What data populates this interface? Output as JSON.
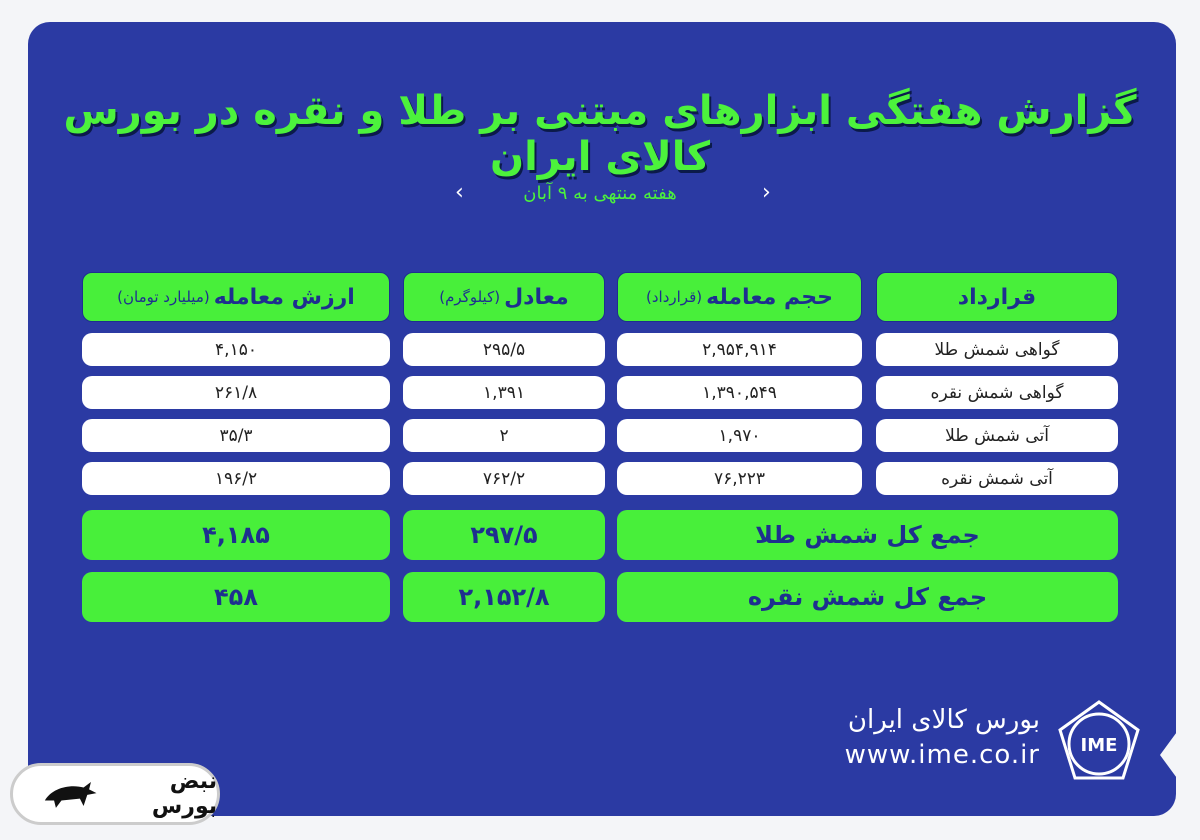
{
  "title": "گزارش هفتگی ابزارهای مبتنی بر طلا و نقره در بورس کالای ایران",
  "subtitle": "هفته منتهی به ۹ آبان",
  "table": {
    "headers": [
      {
        "main": "قرارداد",
        "unit": ""
      },
      {
        "main": "حجم معامله",
        "unit": "(قرارداد)"
      },
      {
        "main": "معادل",
        "unit": "(کیلوگرم)"
      },
      {
        "main": "ارزش معامله",
        "unit": "(میلیارد تومان)"
      }
    ],
    "rows": [
      {
        "contract": "گواهی شمش طلا",
        "volume": "۲,۹۵۴,۹۱۴",
        "equivalent": "۲۹۵/۵",
        "value": "۴,۱۵۰"
      },
      {
        "contract": "گواهی شمش نقره",
        "volume": "۱,۳۹۰,۵۴۹",
        "equivalent": "۱,۳۹۱",
        "value": "۲۶۱/۸"
      },
      {
        "contract": "آتی شمش طلا",
        "volume": "۱,۹۷۰",
        "equivalent": "۲",
        "value": "۳۵/۳"
      },
      {
        "contract": "آتی شمش نقره",
        "volume": "۷۶,۲۲۳",
        "equivalent": "۷۶۲/۲",
        "value": "۱۹۶/۲"
      }
    ],
    "totals": [
      {
        "label": "جمع کل شمش طلا",
        "equivalent": "۲۹۷/۵",
        "value": "۴,۱۸۵"
      },
      {
        "label": "جمع کل شمش نقره",
        "equivalent": "۲,۱۵۲/۸",
        "value": "۴۵۸"
      }
    ]
  },
  "footer": {
    "org_name": "بورس کالای ایران",
    "url": "www.ime.co.ir",
    "logo_text": "IME",
    "watermark": "نبض بورس"
  },
  "colors": {
    "background": "#2b3aa3",
    "accent": "#48ef3a"
  }
}
